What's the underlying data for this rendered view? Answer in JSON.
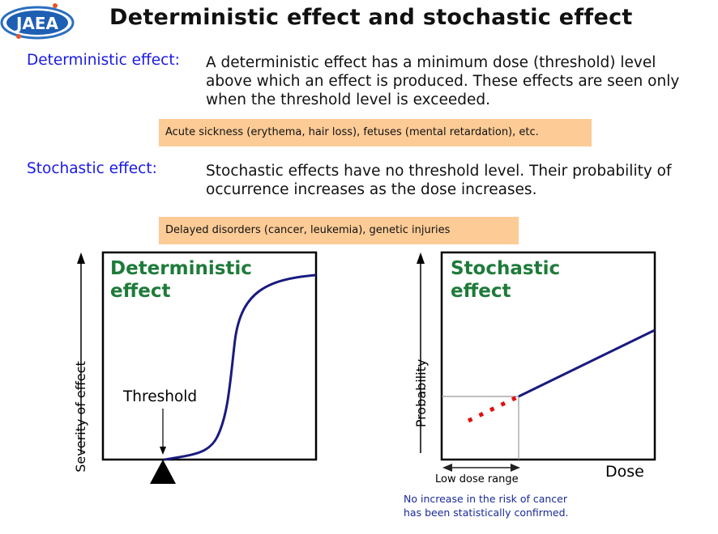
{
  "logo": {
    "text": "JAEA"
  },
  "title": "Deterministic effect and stochastic effect",
  "deterministic": {
    "label": "Deterministic effect:",
    "description": "A deterministic effect has a minimum dose (threshold) level above which an effect is produced. These effects are seen only when the threshold level is exceeded.",
    "examples": "Acute sickness (erythema, hair loss), fetuses (mental retardation), etc."
  },
  "stochastic": {
    "label": "Stochastic effect:",
    "description": "Stochastic effects have no threshold level. Their probability of occurrence increases as the dose increases.",
    "examples": "Delayed disorders (cancer, leukemia), genetic injuries"
  },
  "left_graph": {
    "title_line1": "Deterministic",
    "title_line2": "effect",
    "ylabel": "Severity of effect",
    "threshold_label": "Threshold"
  },
  "right_graph": {
    "title_line1": "Stochastic",
    "title_line2": "effect",
    "ylabel": "Probability",
    "xlabel": "Dose",
    "range_label": "Low dose range",
    "note_line1": "No increase in the risk of cancer",
    "note_line2": "has been statistically confirmed."
  },
  "colors": {
    "curve": "#1a1a80",
    "dotted": "#e01010",
    "heading_blue": "#1a1ae6",
    "graph_title": "#1e7b3a",
    "example_box": "#fccb96"
  }
}
